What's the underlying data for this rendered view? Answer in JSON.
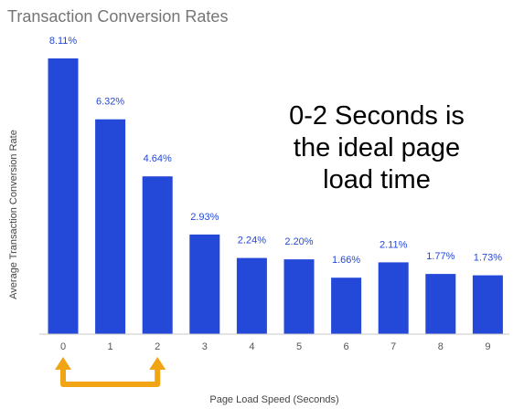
{
  "chart_data": {
    "type": "bar",
    "title": "Transaction Conversion Rates",
    "xlabel": "Page Load Speed (Seconds)",
    "ylabel": "Average Transaction Conversion Rate",
    "categories": [
      "0",
      "1",
      "2",
      "3",
      "4",
      "5",
      "6",
      "7",
      "8",
      "9"
    ],
    "values": [
      8.11,
      6.32,
      4.64,
      2.93,
      2.24,
      2.2,
      1.66,
      2.11,
      1.77,
      1.73
    ],
    "data_labels": [
      "8.11%",
      "6.32%",
      "4.64%",
      "2.93%",
      "2.24%",
      "2.20%",
      "1.66%",
      "2.11%",
      "1.77%",
      "1.73%"
    ],
    "ylim": [
      0,
      8.11
    ],
    "grid": false,
    "annotation": {
      "lines": [
        "0-2 Seconds is",
        "the ideal page",
        "load time"
      ]
    },
    "highlight_range": [
      "0",
      "2"
    ],
    "colors": {
      "bar": "#2448d8",
      "data_label": "#2448d8",
      "arrow": "#f2a514",
      "baseline": "#c8c8c8"
    }
  }
}
